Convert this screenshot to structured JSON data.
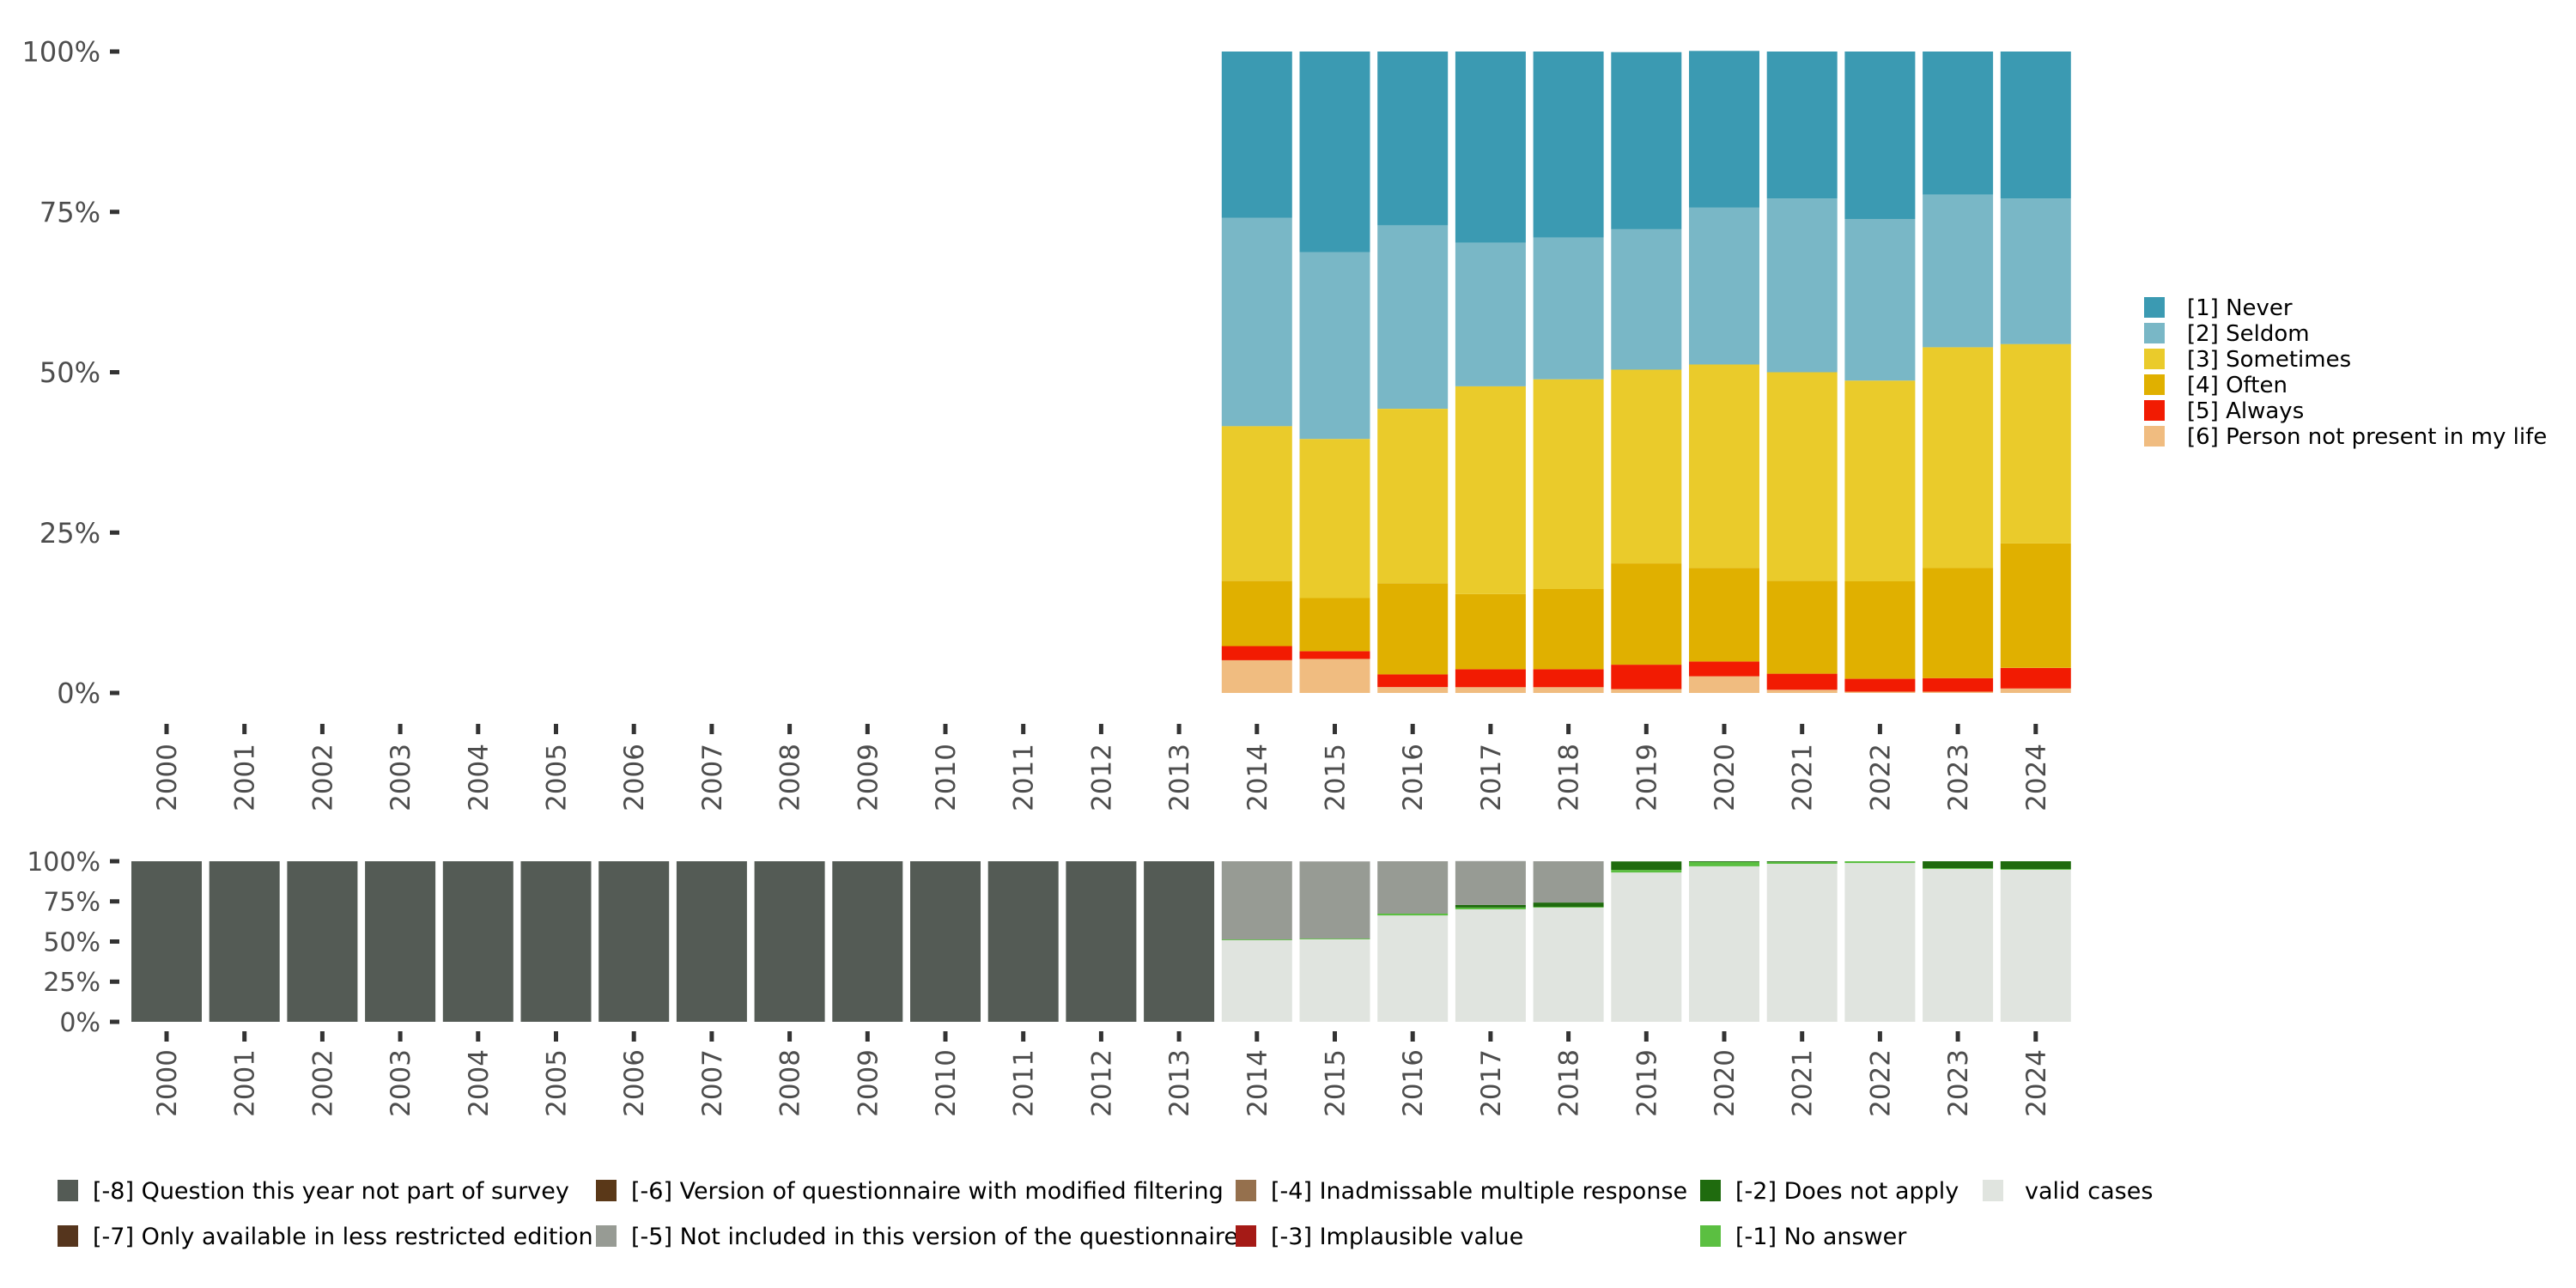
{
  "chart_data": [
    {
      "type": "bar",
      "stacked": true,
      "title": "",
      "xlabel": "",
      "ylabel": "",
      "ylim": [
        0,
        100
      ],
      "y_ticks": [
        "0%",
        "25%",
        "50%",
        "75%",
        "100%"
      ],
      "y_tick_values": [
        0,
        25,
        50,
        75,
        100
      ],
      "grid": false,
      "legend_position": "right",
      "categories": [
        "2000",
        "2001",
        "2002",
        "2003",
        "2004",
        "2005",
        "2006",
        "2007",
        "2008",
        "2009",
        "2010",
        "2011",
        "2012",
        "2013",
        "2014",
        "2015",
        "2016",
        "2017",
        "2018",
        "2019",
        "2020",
        "2021",
        "2022",
        "2023",
        "2024"
      ],
      "series": [
        {
          "name": "[6] Person not present in my life",
          "color": "#f0bc80",
          "values": [
            null,
            null,
            null,
            null,
            null,
            null,
            null,
            null,
            null,
            null,
            null,
            null,
            null,
            null,
            5.1,
            5.3,
            0.9,
            0.9,
            0.9,
            0.6,
            2.6,
            0.5,
            0.2,
            0.2,
            0.7
          ]
        },
        {
          "name": "[5] Always",
          "color": "#f21b02",
          "values": [
            null,
            null,
            null,
            null,
            null,
            null,
            null,
            null,
            null,
            null,
            null,
            null,
            null,
            null,
            2.2,
            1.2,
            2.0,
            2.8,
            2.8,
            3.8,
            2.3,
            2.5,
            2.0,
            2.1,
            3.2
          ]
        },
        {
          "name": "[4] Often",
          "color": "#e0b000",
          "values": [
            null,
            null,
            null,
            null,
            null,
            null,
            null,
            null,
            null,
            null,
            null,
            null,
            null,
            null,
            10.2,
            8.3,
            14.2,
            11.7,
            12.5,
            15.8,
            14.6,
            14.5,
            15.2,
            17.2,
            19.4
          ]
        },
        {
          "name": "[3] Sometimes",
          "color": "#eacb2b",
          "values": [
            null,
            null,
            null,
            null,
            null,
            null,
            null,
            null,
            null,
            null,
            null,
            null,
            null,
            null,
            24.1,
            24.8,
            27.2,
            32.4,
            32.7,
            30.2,
            31.7,
            32.5,
            31.3,
            34.4,
            31.1
          ]
        },
        {
          "name": "[2] Seldom",
          "color": "#79b7c6",
          "values": [
            null,
            null,
            null,
            null,
            null,
            null,
            null,
            null,
            null,
            null,
            null,
            null,
            null,
            null,
            32.5,
            29.1,
            28.6,
            22.4,
            22.1,
            21.9,
            24.5,
            27.1,
            25.2,
            23.8,
            22.7
          ]
        },
        {
          "name": "[1] Never",
          "color": "#3b9ab2",
          "values": [
            null,
            null,
            null,
            null,
            null,
            null,
            null,
            null,
            null,
            null,
            null,
            null,
            null,
            null,
            25.9,
            31.3,
            27.1,
            29.8,
            29.0,
            27.6,
            24.4,
            22.9,
            26.1,
            22.3,
            22.9
          ]
        }
      ],
      "legend": [
        {
          "label": "[1] Never",
          "color": "#3b9ab2"
        },
        {
          "label": "[2] Seldom",
          "color": "#79b7c6"
        },
        {
          "label": "[3] Sometimes",
          "color": "#eacb2b"
        },
        {
          "label": "[4] Often",
          "color": "#e0b000"
        },
        {
          "label": "[5] Always",
          "color": "#f21b02"
        },
        {
          "label": "[6] Person not present in my life",
          "color": "#f0bc80"
        }
      ]
    },
    {
      "type": "bar",
      "stacked": true,
      "title": "",
      "xlabel": "",
      "ylabel": "",
      "ylim": [
        0,
        100
      ],
      "y_ticks": [
        "0%",
        "25%",
        "50%",
        "75%",
        "100%"
      ],
      "y_tick_values": [
        0,
        25,
        50,
        75,
        100
      ],
      "grid": false,
      "legend_position": "bottom",
      "categories": [
        "2000",
        "2001",
        "2002",
        "2003",
        "2004",
        "2005",
        "2006",
        "2007",
        "2008",
        "2009",
        "2010",
        "2011",
        "2012",
        "2013",
        "2014",
        "2015",
        "2016",
        "2017",
        "2018",
        "2019",
        "2020",
        "2021",
        "2022",
        "2023",
        "2024"
      ],
      "series": [
        {
          "name": "valid cases",
          "color": "#e0e4df",
          "values": [
            0,
            0,
            0,
            0,
            0,
            0,
            0,
            0,
            0,
            0,
            0,
            0,
            0,
            0,
            50.8,
            51.3,
            66.3,
            70.1,
            71.1,
            93.0,
            96.8,
            98.4,
            98.9,
            95.2,
            94.7
          ]
        },
        {
          "name": "[-1] No answer",
          "color": "#5bbf41",
          "values": [
            0,
            0,
            0,
            0,
            0,
            0,
            0,
            0,
            0,
            0,
            0,
            0,
            0,
            0,
            0.5,
            0.5,
            1.1,
            1.1,
            0.5,
            1.6,
            2.7,
            1.1,
            1.1,
            0.5,
            0.5
          ]
        },
        {
          "name": "[-2] Does not apply",
          "color": "#1f6b0e",
          "values": [
            0,
            0,
            0,
            0,
            0,
            0,
            0,
            0,
            0,
            0,
            0,
            0,
            0,
            0,
            0,
            0,
            0,
            1.6,
            2.7,
            5.3,
            0.5,
            0.5,
            0,
            4.3,
            4.8
          ]
        },
        {
          "name": "[-5] Not included in this version of the questionnaire",
          "color": "#979b94",
          "values": [
            0,
            0,
            0,
            0,
            0,
            0,
            0,
            0,
            0,
            0,
            0,
            0,
            0,
            0,
            48.7,
            48.1,
            32.6,
            27.3,
            25.7,
            0,
            0,
            0,
            0,
            0,
            0
          ]
        },
        {
          "name": "[-8] Question this year not part of survey",
          "color": "#545b55",
          "values": [
            100,
            100,
            100,
            100,
            100,
            100,
            100,
            100,
            100,
            100,
            100,
            100,
            100,
            100,
            0,
            0,
            0,
            0,
            0,
            0,
            0,
            0,
            0,
            0,
            0
          ]
        }
      ],
      "legend": [
        {
          "label": "[-8] Question this year not part of survey",
          "color": "#545b55"
        },
        {
          "label": "[-7] Only available in less restricted edition",
          "color": "#55351d"
        },
        {
          "label": "[-6] Version of questionnaire with modified filtering",
          "color": "#5a3818"
        },
        {
          "label": "[-5] Not included in this version of the questionnaire",
          "color": "#979b94"
        },
        {
          "label": "[-4] Inadmissable multiple response",
          "color": "#95704d"
        },
        {
          "label": "[-3] Implausible value",
          "color": "#a51a16"
        },
        {
          "label": "[-2] Does not apply",
          "color": "#1f6b0e"
        },
        {
          "label": "[-1] No answer",
          "color": "#5bbf41"
        },
        {
          "label": "valid cases",
          "color": "#e0e4df"
        }
      ]
    }
  ]
}
